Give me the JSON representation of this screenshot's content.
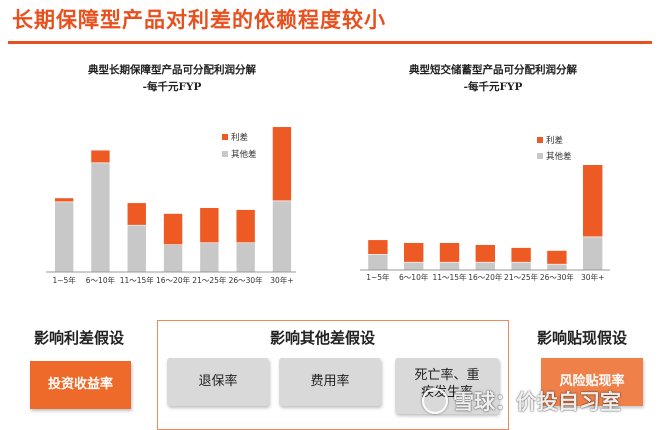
{
  "page": {
    "title": "长期保障型产品对利差的依赖程度较小"
  },
  "colors": {
    "accent": "#e8501e",
    "lixiancha": "#ee5a24",
    "qitacha": "#c8c8c8"
  },
  "chart_data": [
    {
      "type": "bar",
      "stacked": true,
      "title": "典型长期保障型产品可分配利润分解",
      "subtitle": "-每千元FYP",
      "categories": [
        "1~5年",
        "6～10年",
        "11～15年",
        "16～20年",
        "21～25年",
        "26～30年",
        "30年+"
      ],
      "series": [
        {
          "name": "其他差",
          "values": [
            72,
            112,
            48,
            28,
            30,
            30,
            73
          ]
        },
        {
          "name": "利差",
          "values": [
            4,
            13,
            23,
            32,
            36,
            34,
            76
          ]
        }
      ],
      "ylim": [
        0,
        160
      ],
      "legend": "top-right",
      "grid": false
    },
    {
      "type": "bar",
      "stacked": true,
      "title": "典型短交储蓄型产品可分配利润分解",
      "subtitle": "-每千元FYP",
      "categories": [
        "1~5年",
        "6～10年",
        "11～15年",
        "16～20年",
        "21～25年",
        "26～30年",
        "30年+"
      ],
      "series": [
        {
          "name": "其他差",
          "values": [
            16,
            8,
            8,
            8,
            8,
            6,
            34
          ]
        },
        {
          "name": "利差",
          "values": [
            15,
            20,
            20,
            18,
            15,
            14,
            74
          ]
        }
      ],
      "ylim": [
        0,
        160
      ],
      "legend": "top-right",
      "grid": false
    }
  ],
  "sections": {
    "left": {
      "title": "影响利差假设",
      "items": [
        "投资收益率"
      ]
    },
    "middle": {
      "title": "影响其他差假设",
      "items": [
        "退保率",
        "费用率",
        "死亡率、重\n疾发生率"
      ]
    },
    "right": {
      "title": "影响贴现假设",
      "items": [
        "风险贴现率"
      ]
    }
  },
  "watermark": {
    "text": "雪球：价投自习室"
  }
}
